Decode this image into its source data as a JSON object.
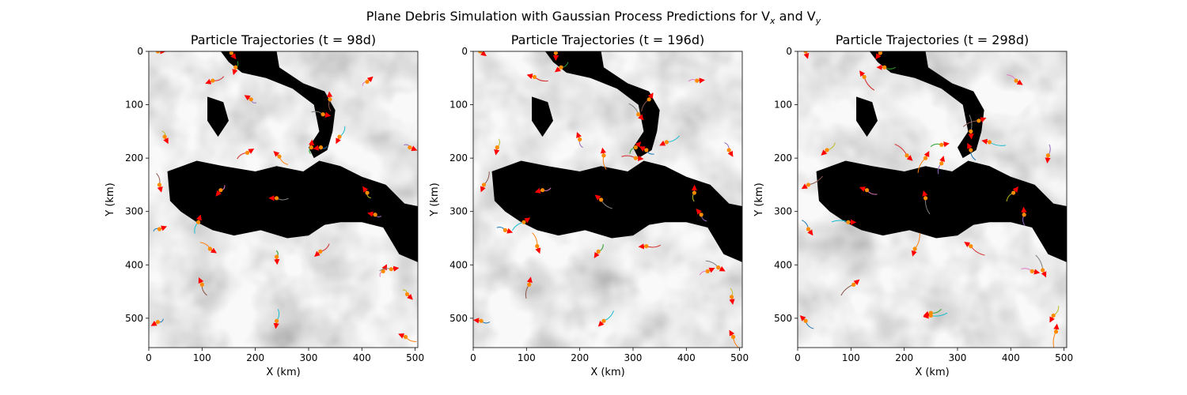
{
  "figure": {
    "suptitle": "Plane Debris Simulation with Gaussian Process Predictions for V",
    "suptitle_x_sub": "x",
    "suptitle_and": " and V",
    "suptitle_y_sub": "y"
  },
  "chart_data": [
    {
      "type": "scatter",
      "title": "Particle Trajectories (t = 98d)",
      "xlabel": "X (km)",
      "ylabel": "Y (km)",
      "xlim": [
        0,
        505
      ],
      "ylim": [
        555,
        0
      ],
      "xticks": [
        0,
        100,
        200,
        300,
        400,
        500
      ],
      "yticks": [
        0,
        100,
        200,
        300,
        400,
        500
      ],
      "background": "grayscale speed field with black land mask",
      "particle_color": "#ff8c00",
      "arrow_color": "#ff0000",
      "positions": [
        [
          17,
          0
        ],
        [
          155,
          3
        ],
        [
          163,
          30
        ],
        [
          120,
          55
        ],
        [
          192,
          90
        ],
        [
          340,
          90
        ],
        [
          410,
          57
        ],
        [
          327,
          118
        ],
        [
          30,
          160
        ],
        [
          358,
          160
        ],
        [
          323,
          180
        ],
        [
          245,
          197
        ],
        [
          305,
          180
        ],
        [
          185,
          190
        ],
        [
          490,
          180
        ],
        [
          20,
          250
        ],
        [
          135,
          260
        ],
        [
          240,
          275
        ],
        [
          410,
          265
        ],
        [
          93,
          320
        ],
        [
          20,
          333
        ],
        [
          115,
          370
        ],
        [
          240,
          385
        ],
        [
          322,
          375
        ],
        [
          425,
          306
        ],
        [
          100,
          437
        ],
        [
          440,
          412
        ],
        [
          455,
          408
        ],
        [
          485,
          455
        ],
        [
          240,
          505
        ],
        [
          17,
          507
        ],
        [
          482,
          535
        ]
      ]
    },
    {
      "type": "scatter",
      "title": "Particle Trajectories (t = 196d)",
      "xlabel": "X (km)",
      "ylabel": "Y (km)",
      "xlim": [
        0,
        505
      ],
      "ylim": [
        555,
        0
      ],
      "xticks": [
        0,
        100,
        200,
        300,
        400,
        500
      ],
      "yticks": [
        0,
        100,
        200,
        300,
        400,
        500
      ],
      "background": "grayscale speed field with black land mask",
      "particle_color": "#ff8c00",
      "arrow_color": "#ff0000",
      "positions": [
        [
          13,
          0
        ],
        [
          155,
          3
        ],
        [
          165,
          30
        ],
        [
          115,
          48
        ],
        [
          200,
          165
        ],
        [
          330,
          90
        ],
        [
          420,
          55
        ],
        [
          310,
          118
        ],
        [
          45,
          180
        ],
        [
          363,
          170
        ],
        [
          325,
          185
        ],
        [
          245,
          195
        ],
        [
          305,
          180
        ],
        [
          305,
          200
        ],
        [
          480,
          185
        ],
        [
          20,
          250
        ],
        [
          130,
          260
        ],
        [
          240,
          278
        ],
        [
          415,
          265
        ],
        [
          95,
          320
        ],
        [
          60,
          335
        ],
        [
          120,
          365
        ],
        [
          235,
          375
        ],
        [
          325,
          365
        ],
        [
          428,
          306
        ],
        [
          105,
          437
        ],
        [
          440,
          412
        ],
        [
          460,
          405
        ],
        [
          485,
          460
        ],
        [
          245,
          505
        ],
        [
          15,
          505
        ],
        [
          488,
          535
        ]
      ]
    },
    {
      "type": "scatter",
      "title": "Particle Trajectories (t = 298d)",
      "xlabel": "X (km)",
      "ylabel": "Y (km)",
      "xlim": [
        0,
        505
      ],
      "ylim": [
        555,
        0
      ],
      "xticks": [
        0,
        100,
        200,
        300,
        400,
        500
      ],
      "yticks": [
        0,
        100,
        200,
        300,
        400,
        500
      ],
      "background": "grayscale speed field with black land mask",
      "particle_color": "#ff8c00",
      "arrow_color": "#ff0000",
      "positions": [
        [
          15,
          0
        ],
        [
          155,
          3
        ],
        [
          163,
          30
        ],
        [
          125,
          48
        ],
        [
          270,
          210
        ],
        [
          340,
          130
        ],
        [
          410,
          55
        ],
        [
          325,
          150
        ],
        [
          55,
          185
        ],
        [
          360,
          170
        ],
        [
          325,
          185
        ],
        [
          240,
          200
        ],
        [
          270,
          175
        ],
        [
          205,
          195
        ],
        [
          470,
          195
        ],
        [
          20,
          250
        ],
        [
          130,
          260
        ],
        [
          240,
          275
        ],
        [
          405,
          265
        ],
        [
          95,
          320
        ],
        [
          20,
          333
        ],
        [
          220,
          370
        ],
        [
          250,
          490
        ],
        [
          325,
          365
        ],
        [
          425,
          306
        ],
        [
          105,
          437
        ],
        [
          440,
          412
        ],
        [
          460,
          410
        ],
        [
          480,
          495
        ],
        [
          250,
          495
        ],
        [
          15,
          505
        ],
        [
          485,
          525
        ]
      ]
    }
  ]
}
